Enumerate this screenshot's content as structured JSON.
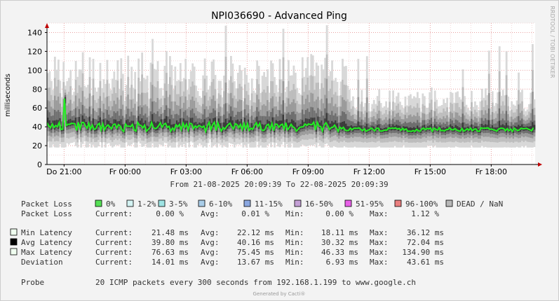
{
  "chart_data": {
    "type": "area",
    "title": "NPI036690 - Advanced Ping",
    "ylabel": "milliseconds",
    "ylim": [
      0,
      150
    ],
    "yticks": [
      0,
      20,
      40,
      60,
      80,
      100,
      120,
      140
    ],
    "xticks": [
      "Do 21:00",
      "Fr 00:00",
      "Fr 03:00",
      "Fr 06:00",
      "Fr 09:00",
      "Fr 12:00",
      "Fr 15:00",
      "Fr 18:00"
    ],
    "x_range_hours": [
      20.16,
      44.16
    ],
    "xtick_hours": [
      21,
      24,
      27,
      30,
      33,
      36,
      39,
      42
    ],
    "daterange": "From 21-08-2025 20:09:39 To 22-08-2025 20:09:39",
    "side_label": "RRDTOOL / TOBI OETIKER",
    "footer": "Generated by Cacti®",
    "grid": true,
    "series": [
      {
        "name": "Min Latency",
        "current": "21.48 ms",
        "avg": "22.12 ms",
        "min": "18.11 ms",
        "max": "36.12 ms"
      },
      {
        "name": "Avg Latency",
        "current": "39.80 ms",
        "avg": "40.16 ms",
        "min": "30.32 ms",
        "max": "72.04 ms"
      },
      {
        "name": "Max Latency",
        "current": "76.63 ms",
        "avg": "75.45 ms",
        "min": "46.33 ms",
        "max": "134.90 ms"
      },
      {
        "name": "Deviation",
        "current": "14.01 ms",
        "avg": "13.67 ms",
        "min": "6.93 ms",
        "max": "43.61 ms"
      }
    ],
    "packet_loss": {
      "label": "Packet Loss",
      "buckets": [
        {
          "label": "0%",
          "color": "#55e055"
        },
        {
          "label": "1-2%",
          "color": "#d4f3f3"
        },
        {
          "label": "3-5%",
          "color": "#9ee3e3"
        },
        {
          "label": "6-10%",
          "color": "#a9cde8"
        },
        {
          "label": "11-15%",
          "color": "#8aa7e0"
        },
        {
          "label": "16-50%",
          "color": "#c4a0d6"
        },
        {
          "label": "51-95%",
          "color": "#e860e8"
        },
        {
          "label": "96-100%",
          "color": "#ea7f7f"
        },
        {
          "label": "DEAD / NaN",
          "color": "#b8b8b8"
        }
      ],
      "current": "0.00 %",
      "avg": "0.01 %",
      "min": "0.00 %",
      "max": "1.12 %"
    },
    "probe_label": "Probe",
    "probe": "20 ICMP packets every 300 seconds from 192.168.1.199 to www.google.ch"
  },
  "labels": {
    "current": "Current:",
    "avg": "Avg:",
    "min": "Min:",
    "max": "Max:"
  },
  "colors": {
    "line": "#22ee22",
    "background": "#f3f3f3",
    "plot": "#ffffff",
    "grid": "#e06060"
  }
}
